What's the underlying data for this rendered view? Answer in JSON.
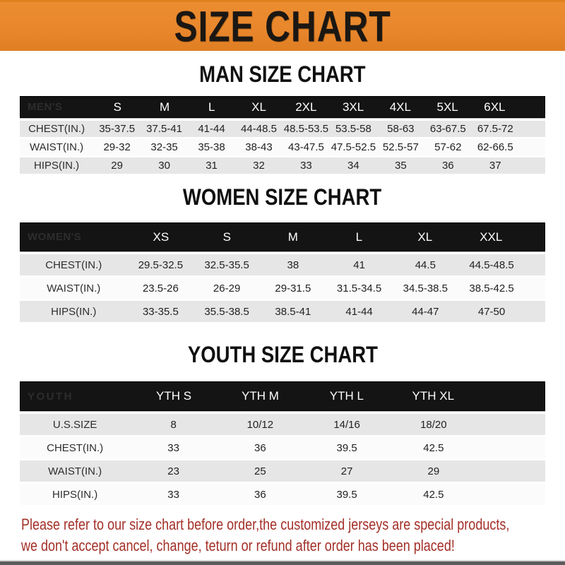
{
  "banner": {
    "title": "SIZE CHART"
  },
  "colors": {
    "banner_bg": "#E8862C",
    "table_header_bar": "#141414",
    "band_gray": "#E6E6E6",
    "band_white": "#FBFBFB",
    "disclaimer_red": "#A33028"
  },
  "chart_data": [
    {
      "type": "table",
      "title": "MAN SIZE CHART",
      "header": [
        "MEN'S",
        "S",
        "M",
        "L",
        "XL",
        "2XL",
        "3XL",
        "4XL",
        "5XL",
        "6XL"
      ],
      "rows": [
        [
          "CHEST(IN.)",
          "35-37.5",
          "37.5-41",
          "41-44",
          "44-48.5",
          "48.5-53.5",
          "53.5-58",
          "58-63",
          "63-67.5",
          "67.5-72"
        ],
        [
          "WAIST(IN.)",
          "29-32",
          "32-35",
          "35-38",
          "38-43",
          "43-47.5",
          "47.5-52.5",
          "52.5-57",
          "57-62",
          "62-66.5"
        ],
        [
          "HIPS(IN.)",
          "29",
          "30",
          "31",
          "32",
          "33",
          "34",
          "35",
          "36",
          "37"
        ]
      ]
    },
    {
      "type": "table",
      "title": "WOMEN SIZE CHART",
      "header": [
        "WOMEN'S",
        "XS",
        "S",
        "M",
        "L",
        "XL",
        "XXL"
      ],
      "rows": [
        [
          "CHEST(IN.)",
          "29.5-32.5",
          "32.5-35.5",
          "38",
          "41",
          "44.5",
          "44.5-48.5"
        ],
        [
          "WAIST(IN.)",
          "23.5-26",
          "26-29",
          "29-31.5",
          "31.5-34.5",
          "34.5-38.5",
          "38.5-42.5"
        ],
        [
          "HIPS(IN.)",
          "33-35.5",
          "35.5-38.5",
          "38.5-41",
          "41-44",
          "44-47",
          "47-50"
        ]
      ]
    },
    {
      "type": "table",
      "title": "YOUTH SIZE CHART",
      "header": [
        "YOUTH",
        "YTH S",
        "YTH M",
        "YTH L",
        "YTH XL"
      ],
      "rows": [
        [
          "U.S.SIZE",
          "8",
          "10/12",
          "14/16",
          "18/20"
        ],
        [
          "CHEST(IN.)",
          "33",
          "36",
          "39.5",
          "42.5"
        ],
        [
          "WAIST(IN.)",
          "23",
          "25",
          "27",
          "29"
        ],
        [
          "HIPS(IN.)",
          "33",
          "36",
          "39.5",
          "42.5"
        ]
      ]
    }
  ],
  "footer": {
    "line1": "Please refer to our size chart before order,the customized jerseys are special products,",
    "line2": "we don't accept cancel, change, teturn or refund after order has been placed!"
  }
}
